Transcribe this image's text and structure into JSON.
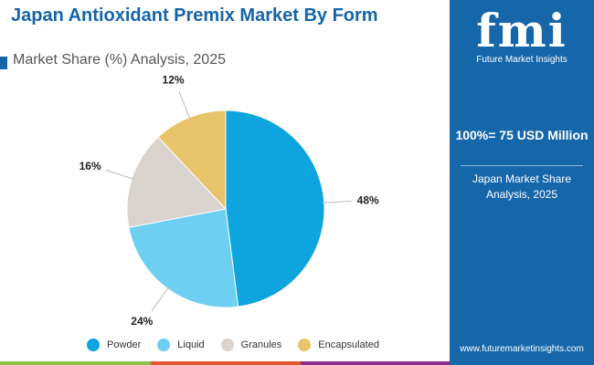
{
  "title": "Japan Antioxidant Premix Market By Form",
  "subtitle": "Market Share (%) Analysis, 2025",
  "chart_data": {
    "type": "pie",
    "categories": [
      "Powder",
      "Liquid",
      "Granules",
      "Encapsulated"
    ],
    "values": [
      48,
      24,
      16,
      12
    ],
    "labels": [
      "48%",
      "24%",
      "16%",
      "12%"
    ],
    "colors": [
      "#0ea5df",
      "#6dcff1",
      "#dbd3ce",
      "#e8c46a"
    ],
    "start": "top, clockwise",
    "legend": "bottom"
  },
  "panel": {
    "logo_text": "fmi",
    "logo_caption": "Future Market Insights",
    "total": "100%= 75 USD Million",
    "share_label": "Japan Market Share Analysis, 2025",
    "url": "www.futuremarketinsights.com"
  },
  "bottom_bar_colors": [
    "#8bc34a",
    "#e4572e",
    "#8e2d8e"
  ]
}
